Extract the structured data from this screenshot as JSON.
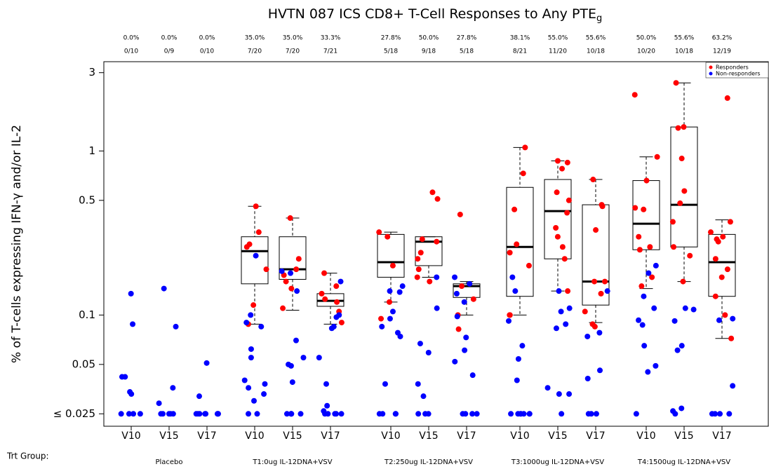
{
  "chart_data": {
    "type": "box",
    "title": "HVTN 087 ICS CD8+ T-Cell Responses to Any PTE",
    "title_sub": "g",
    "y_label": "% of T-cells expressing IFN-γ and/or IL-2",
    "group_label": "Trt Group:",
    "log_scale": true,
    "ylim": [
      0.021,
      3.5
    ],
    "yticks": [
      3,
      1,
      0.5,
      0.1,
      0.05,
      {
        "value": 0.025,
        "label": "≤ 0.025"
      }
    ],
    "series": [
      {
        "name": "Responders",
        "color": "#ff0000"
      },
      {
        "name": "Non-responders",
        "color": "#0000ff"
      }
    ],
    "legend": "top-right",
    "groups": [
      {
        "name": "Placebo",
        "visits": [
          {
            "name": "V10",
            "percent": "0.0%",
            "fraction": "0/10",
            "responders": [],
            "non_responders": [
              0.135,
              0.088,
              0.042,
              0.042,
              0.034,
              0.033,
              0.025,
              0.025,
              0.025,
              0.025
            ]
          },
          {
            "name": "V15",
            "percent": "0.0%",
            "fraction": "0/9",
            "responders": [],
            "non_responders": [
              0.145,
              0.085,
              0.036,
              0.029,
              0.025,
              0.025,
              0.025,
              0.025,
              0.025
            ]
          },
          {
            "name": "V17",
            "percent": "0.0%",
            "fraction": "0/10",
            "responders": [],
            "non_responders": [
              0.051,
              0.032,
              0.025,
              0.025,
              0.025,
              0.025,
              0.025,
              0.025,
              0.025,
              0.025
            ]
          }
        ]
      },
      {
        "name": "T1:0ug IL-12DNA+VSV",
        "visits": [
          {
            "name": "V10",
            "percent": "35.0%",
            "fraction": "7/20",
            "box": {
              "low": 0.088,
              "q1": 0.155,
              "median": 0.245,
              "q3": 0.3,
              "high": 0.46
            },
            "responders": [
              0.46,
              0.32,
              0.27,
              0.26,
              0.19,
              0.115,
              0.088
            ],
            "non_responders": [
              0.23,
              0.1,
              0.09,
              0.085,
              0.062,
              0.055,
              0.04,
              0.038,
              0.036,
              0.033,
              0.03,
              0.025,
              0.025
            ]
          },
          {
            "name": "V15",
            "percent": "35.0%",
            "fraction": "7/20",
            "box": {
              "low": 0.107,
              "q1": 0.165,
              "median": 0.19,
              "q3": 0.3,
              "high": 0.39
            },
            "responders": [
              0.39,
              0.22,
              0.19,
              0.175,
              0.16,
              0.145,
              0.11
            ],
            "non_responders": [
              0.185,
              0.18,
              0.14,
              0.07,
              0.055,
              0.05,
              0.049,
              0.039,
              0.025,
              0.025,
              0.025,
              0.025,
              0.025
            ]
          },
          {
            "name": "V17",
            "percent": "33.3%",
            "fraction": "7/21",
            "box": {
              "low": 0.088,
              "q1": 0.113,
              "median": 0.122,
              "q3": 0.135,
              "high": 0.18
            },
            "responders": [
              0.18,
              0.15,
              0.135,
              0.125,
              0.12,
              0.105,
              0.09
            ],
            "non_responders": [
              0.16,
              0.1,
              0.097,
              0.085,
              0.083,
              0.055,
              0.038,
              0.028,
              0.026,
              0.025,
              0.025,
              0.025,
              0.025,
              0.025
            ]
          }
        ]
      },
      {
        "name": "T2:250ug IL-12DNA+VSV",
        "visits": [
          {
            "name": "V10",
            "percent": "27.8%",
            "fraction": "5/18",
            "box": {
              "low": 0.12,
              "q1": 0.17,
              "median": 0.21,
              "q3": 0.31,
              "high": 0.32
            },
            "responders": [
              0.32,
              0.3,
              0.2,
              0.12,
              0.095
            ],
            "non_responders": [
              0.15,
              0.14,
              0.138,
              0.105,
              0.095,
              0.085,
              0.078,
              0.074,
              0.038,
              0.025,
              0.025,
              0.025,
              0.025
            ]
          },
          {
            "name": "V15",
            "percent": "50.0%",
            "fraction": "9/18",
            "box": {
              "low": 0.17,
              "q1": 0.2,
              "median": 0.28,
              "q3": 0.3,
              "high": 0.3
            },
            "responders": [
              0.56,
              0.51,
              0.29,
              0.28,
              0.24,
              0.22,
              0.19,
              0.17,
              0.16
            ],
            "non_responders": [
              0.17,
              0.11,
              0.067,
              0.059,
              0.038,
              0.032,
              0.025,
              0.025,
              0.025
            ]
          },
          {
            "name": "V17",
            "percent": "27.8%",
            "fraction": "5/18",
            "box": {
              "low": 0.1,
              "q1": 0.128,
              "median": 0.15,
              "q3": 0.155,
              "high": 0.16
            },
            "responders": [
              0.41,
              0.15,
              0.125,
              0.1,
              0.082
            ],
            "non_responders": [
              0.17,
              0.155,
              0.135,
              0.12,
              0.098,
              0.073,
              0.061,
              0.052,
              0.043,
              0.025,
              0.025,
              0.025,
              0.025
            ]
          }
        ]
      },
      {
        "name": "T3:1000ug IL-12DNA+VSV",
        "visits": [
          {
            "name": "V10",
            "percent": "38.1%",
            "fraction": "8/21",
            "box": {
              "low": 0.1,
              "q1": 0.13,
              "median": 0.26,
              "q3": 0.6,
              "high": 1.05
            },
            "responders": [
              1.05,
              0.73,
              0.44,
              0.27,
              0.24,
              0.2,
              0.1,
              0.1
            ],
            "non_responders": [
              0.17,
              0.14,
              0.092,
              0.065,
              0.054,
              0.04,
              0.025,
              0.025,
              0.025,
              0.025,
              0.025,
              0.025,
              0.025
            ]
          },
          {
            "name": "V15",
            "percent": "55.0%",
            "fraction": "11/20",
            "box": {
              "low": 0.14,
              "q1": 0.22,
              "median": 0.43,
              "q3": 0.67,
              "high": 0.87
            },
            "responders": [
              0.87,
              0.85,
              0.78,
              0.56,
              0.5,
              0.42,
              0.34,
              0.3,
              0.26,
              0.22,
              0.14
            ],
            "non_responders": [
              0.14,
              0.11,
              0.105,
              0.088,
              0.083,
              0.036,
              0.033,
              0.033,
              0.025
            ]
          },
          {
            "name": "V17",
            "percent": "55.6%",
            "fraction": "10/18",
            "box": {
              "low": 0.09,
              "q1": 0.115,
              "median": 0.16,
              "q3": 0.47,
              "high": 0.67
            },
            "responders": [
              0.67,
              0.47,
              0.46,
              0.33,
              0.16,
              0.16,
              0.135,
              0.105,
              0.088,
              0.085
            ],
            "non_responders": [
              0.14,
              0.078,
              0.074,
              0.046,
              0.041,
              0.025,
              0.025,
              0.025
            ]
          }
        ]
      },
      {
        "name": "T4:1500ug IL-12DNA+VSV",
        "visits": [
          {
            "name": "V10",
            "percent": "50.0%",
            "fraction": "10/20",
            "box": {
              "low": 0.145,
              "q1": 0.25,
              "median": 0.36,
              "q3": 0.66,
              "high": 0.92
            },
            "responders": [
              2.2,
              0.92,
              0.66,
              0.45,
              0.44,
              0.3,
              0.26,
              0.25,
              0.17,
              0.15
            ],
            "non_responders": [
              0.2,
              0.18,
              0.13,
              0.11,
              0.093,
              0.087,
              0.065,
              0.049,
              0.045,
              0.025
            ]
          },
          {
            "name": "V15",
            "percent": "55.6%",
            "fraction": "10/18",
            "box": {
              "low": 0.16,
              "q1": 0.26,
              "median": 0.47,
              "q3": 1.4,
              "high": 2.6
            },
            "responders": [
              2.6,
              1.4,
              1.38,
              0.9,
              0.57,
              0.48,
              0.37,
              0.26,
              0.23,
              0.16
            ],
            "non_responders": [
              0.11,
              0.108,
              0.092,
              0.065,
              0.061,
              0.027,
              0.026,
              0.025
            ]
          },
          {
            "name": "V17",
            "percent": "63.2%",
            "fraction": "12/19",
            "box": {
              "low": 0.072,
              "q1": 0.13,
              "median": 0.21,
              "q3": 0.31,
              "high": 0.38
            },
            "responders": [
              2.1,
              0.37,
              0.32,
              0.3,
              0.29,
              0.28,
              0.22,
              0.19,
              0.17,
              0.13,
              0.1,
              0.072
            ],
            "non_responders": [
              0.095,
              0.093,
              0.037,
              0.025,
              0.025,
              0.025,
              0.025
            ]
          }
        ]
      }
    ]
  }
}
